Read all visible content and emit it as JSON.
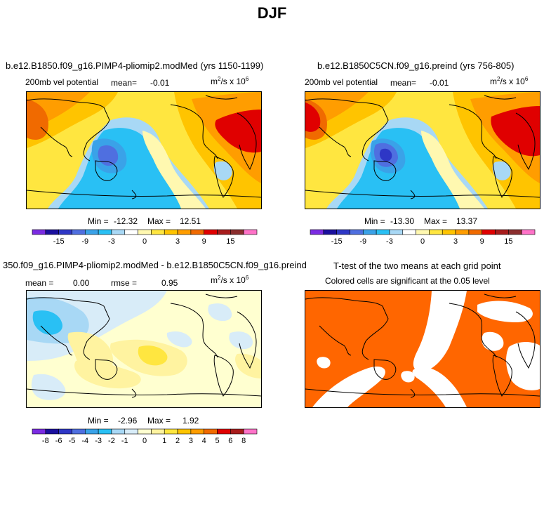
{
  "page": {
    "title": "DJF"
  },
  "palettes": {
    "main": [
      "#7b2be2",
      "#1a0f9e",
      "#2e37c6",
      "#4f6fe0",
      "#3aa2e8",
      "#29c0f4",
      "#a8d8f5",
      "#ffffff",
      "#fff8b0",
      "#ffe640",
      "#ffc400",
      "#ff9d00",
      "#f06a00",
      "#e00000",
      "#a81c1c",
      "#8b2e2e",
      "#ff73c8"
    ],
    "diff": [
      "#7b2be2",
      "#1a0f9e",
      "#2e37c6",
      "#4f6fe0",
      "#3aa2e8",
      "#29c0f4",
      "#a8d8f5",
      "#d8ecf8",
      "#ffffd0",
      "#fff3a0",
      "#ffe640",
      "#ffc400",
      "#ff9d00",
      "#f06a00",
      "#e00000",
      "#a81c1c",
      "#ff73c8"
    ],
    "ttest": {
      "significant": "#ff6600",
      "insignificant": "#ffffff"
    }
  },
  "panels": [
    {
      "title": "b.e12.B1850.f09_g16.PIMP4-pliomip2.modMed (yrs 1150-1199)",
      "left_label": "200mb vel potential",
      "mean_label": "mean=",
      "mean_value": "-0.01",
      "units_base": "m",
      "units_exp": "2",
      "units_mid": "/s x 10",
      "units_exp2": "6",
      "min_label": "Min =",
      "min_value": "-12.32",
      "max_label": "Max =",
      "max_value": "12.51",
      "colorbar_ticks": [
        "-15",
        "-9",
        "-3",
        "0",
        "3",
        "9",
        "15"
      ]
    },
    {
      "title": "b.e12.B1850C5CN.f09_g16.preind (yrs 756-805)",
      "left_label": "200mb vel potential",
      "mean_label": "mean=",
      "mean_value": "-0.01",
      "units_base": "m",
      "units_exp": "2",
      "units_mid": "/s x 10",
      "units_exp2": "6",
      "min_label": "Min =",
      "min_value": "-13.30",
      "max_label": "Max =",
      "max_value": "13.37",
      "colorbar_ticks": [
        "-15",
        "-9",
        "-3",
        "0",
        "3",
        "9",
        "15"
      ]
    },
    {
      "title": "350.f09_g16.PIMP4-pliomip2.modMed - b.e12.B1850C5CN.f09_g16.preind",
      "mean_label": "mean =",
      "mean_value": "0.00",
      "rmse_label": "rmse =",
      "rmse_value": "0.95",
      "units_base": "m",
      "units_exp": "2",
      "units_mid": "/s x 10",
      "units_exp2": "6",
      "min_label": "Min =",
      "min_value": "-2.96",
      "max_label": "Max =",
      "max_value": "1.92",
      "colorbar_ticks": [
        "-8",
        "-6",
        "-5",
        "-4",
        "-3",
        "-2",
        "-1",
        "0",
        "1",
        "2",
        "3",
        "4",
        "5",
        "6",
        "8"
      ]
    },
    {
      "title": "T-test of the two means at each grid point",
      "subtitle": "Colored cells are significant at the 0.05 level"
    }
  ]
}
